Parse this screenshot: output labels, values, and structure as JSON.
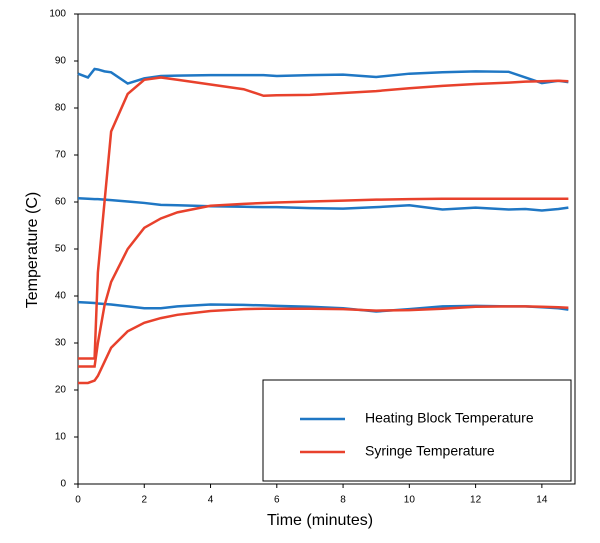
{
  "chart_data": {
    "type": "line",
    "x_label": "Time (minutes)",
    "y_label": "Temperature (C)",
    "xlim": [
      0,
      15
    ],
    "xticks": [
      0,
      2,
      4,
      6,
      8,
      10,
      12,
      14
    ],
    "ylim": [
      0,
      100
    ],
    "yticks": [
      0,
      10,
      20,
      30,
      40,
      50,
      60,
      70,
      80,
      90,
      100
    ],
    "x": [
      0,
      0.3,
      0.5,
      0.6,
      0.8,
      1,
      1.5,
      2,
      2.5,
      3,
      4,
      5,
      5.6,
      6,
      7,
      8,
      9,
      10,
      11,
      12,
      13,
      13.5,
      14,
      14.5,
      14.8
    ],
    "legend": "lower right",
    "series": [
      {
        "name": "Heating Block Temperature",
        "color": "#1f77c4",
        "runs": [
          [
            87.3,
            86.5,
            88.3,
            88.2,
            87.8,
            87.6,
            85.2,
            86.3,
            86.8,
            86.9,
            87,
            87,
            87,
            86.8,
            87,
            87.1,
            86.6,
            87.3,
            87.6,
            87.8,
            87.7,
            86.5,
            85.3,
            85.8,
            85.5
          ],
          [
            60.8,
            60.7,
            60.6,
            60.6,
            60.5,
            60.4,
            60.1,
            59.8,
            59.4,
            59.3,
            59.1,
            59,
            58.9,
            58.9,
            58.7,
            58.6,
            58.9,
            59.3,
            58.4,
            58.8,
            58.4,
            58.5,
            58.2,
            58.5,
            58.8
          ],
          [
            38.7,
            38.6,
            38.5,
            38.4,
            38.3,
            38.2,
            37.8,
            37.4,
            37.4,
            37.8,
            38.2,
            38.1,
            38,
            37.9,
            37.7,
            37.4,
            36.7,
            37.2,
            37.8,
            37.9,
            37.8,
            37.8,
            37.6,
            37.4,
            37.1
          ]
        ]
      },
      {
        "name": "Syringe Temperature",
        "color": "#e8412c",
        "runs": [
          [
            26.7,
            26.7,
            26.7,
            45,
            60,
            75,
            83,
            86,
            86.5,
            86,
            85,
            84,
            82.6,
            82.7,
            82.8,
            83.2,
            83.6,
            84.2,
            84.7,
            85.1,
            85.4,
            85.6,
            85.7,
            85.8,
            85.7
          ],
          [
            25,
            25,
            25,
            30,
            38,
            43,
            50,
            54.5,
            56.5,
            57.8,
            59.2,
            59.6,
            59.8,
            59.9,
            60.1,
            60.3,
            60.5,
            60.6,
            60.7,
            60.7,
            60.7,
            60.7,
            60.7,
            60.7,
            60.7
          ],
          [
            21.5,
            21.5,
            22,
            23,
            26,
            29,
            32.5,
            34.3,
            35.3,
            36,
            36.8,
            37.2,
            37.3,
            37.3,
            37.3,
            37.2,
            36.9,
            37,
            37.3,
            37.7,
            37.8,
            37.8,
            37.7,
            37.6,
            37.5
          ]
        ]
      }
    ]
  }
}
